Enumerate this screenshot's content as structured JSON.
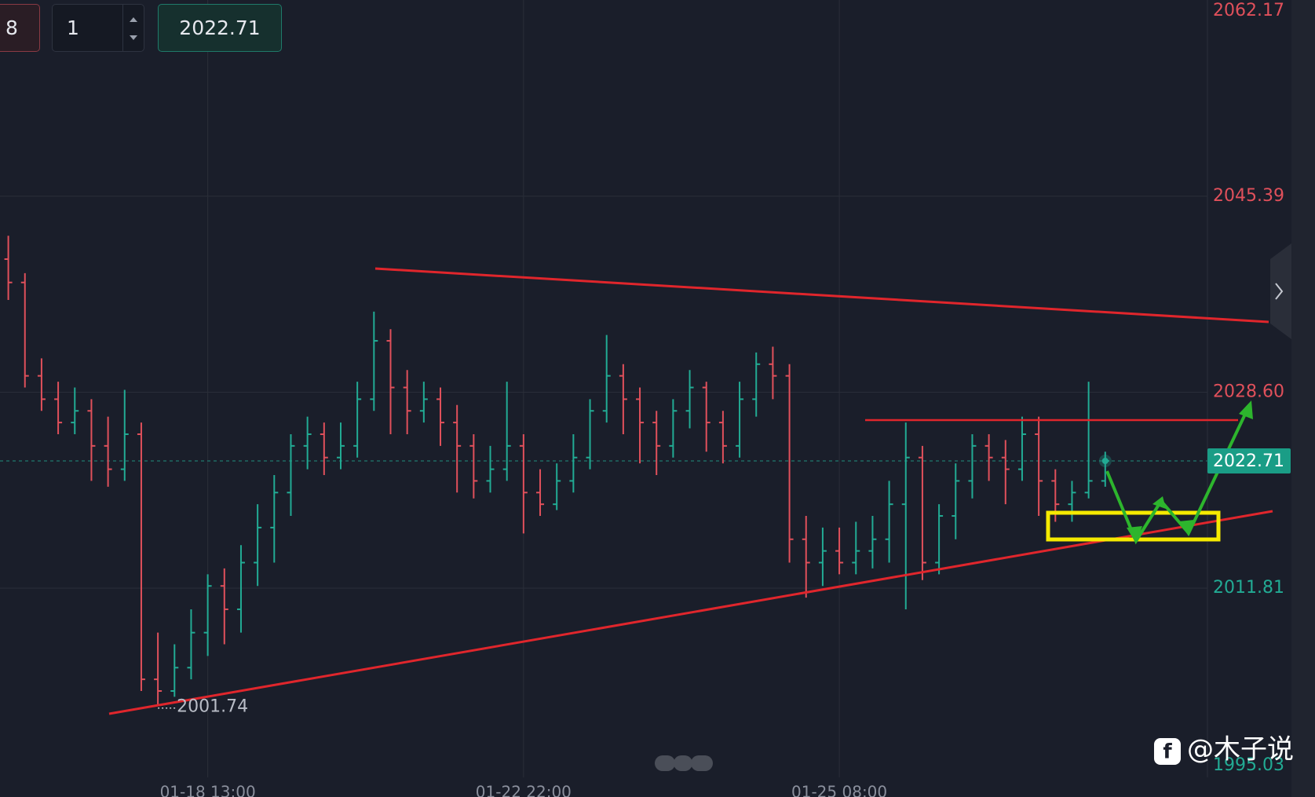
{
  "toolbar": {
    "field_a": "8",
    "quantity": "1",
    "price": "2022.71"
  },
  "watermark": "@木子说",
  "chart_data": {
    "type": "ohlc",
    "categories": [
      null,
      null,
      null,
      null,
      null,
      null,
      null,
      null,
      null,
      null,
      null,
      null,
      "01-18 13:00",
      null,
      null,
      null,
      null,
      null,
      null,
      null,
      null,
      null,
      null,
      null,
      null,
      null,
      null,
      null,
      null,
      null,
      null,
      "01-22 22:00",
      null,
      null,
      null,
      null,
      null,
      null,
      null,
      null,
      null,
      null,
      null,
      null,
      null,
      null,
      null,
      null,
      null,
      null,
      "01-25 08:00",
      null,
      null,
      null,
      null,
      null,
      null,
      null,
      null,
      null,
      null,
      null,
      null,
      null,
      null,
      null,
      null
    ],
    "open": [
      2040,
      2038,
      2030,
      2028,
      2026,
      2027,
      2024,
      2022,
      2025,
      2004,
      2003,
      2005,
      2008,
      2012,
      2010,
      2014,
      2017,
      2020,
      2024,
      2025,
      2023,
      2024,
      2028,
      2033,
      2029,
      2027,
      2028,
      2026,
      2024,
      2021,
      2022,
      2024,
      2020,
      2019,
      2021,
      2023,
      2027,
      2030,
      2028,
      2026,
      2024,
      2027,
      2029,
      2026,
      2024,
      2028,
      2031,
      2030,
      2016,
      2014,
      2015,
      2014,
      2015,
      2016,
      2019,
      2023,
      2014,
      2018,
      2021,
      2024,
      2023,
      2022,
      2025,
      2021,
      2019,
      2020,
      2021
    ],
    "high": [
      2042,
      2038.8,
      2031.5,
      2029.5,
      2029,
      2028,
      2026.5,
      2028.8,
      2026,
      2008,
      2007,
      2010,
      2013,
      2013.5,
      2015.5,
      2019,
      2021.5,
      2025,
      2026.5,
      2026,
      2026,
      2029.5,
      2035.5,
      2034,
      2030.5,
      2029.5,
      2029,
      2027.5,
      2025,
      2024,
      2029.5,
      2025,
      2022,
      2022.5,
      2025,
      2028,
      2033.5,
      2031,
      2029,
      2027,
      2028,
      2030.5,
      2029.5,
      2027,
      2029.5,
      2032,
      2032.5,
      2031,
      2018,
      2017,
      2017,
      2017.5,
      2018,
      2021,
      2026,
      2024,
      2019,
      2022.5,
      2025,
      2025,
      2024.5,
      2026.5,
      2026.5,
      2022,
      2021,
      2029.5,
      2023.5
    ],
    "low": [
      2036.5,
      2029,
      2027,
      2025,
      2025,
      2021,
      2020.5,
      2021,
      2003,
      2001.74,
      2002.5,
      2004,
      2006,
      2007,
      2008,
      2012,
      2014,
      2018,
      2022,
      2021.5,
      2022,
      2023,
      2027,
      2025,
      2025,
      2026,
      2024,
      2020,
      2019.5,
      2020,
      2021,
      2016.5,
      2018,
      2018.5,
      2020,
      2022,
      2026,
      2025,
      2022.5,
      2021.5,
      2023,
      2025.5,
      2023.5,
      2022.5,
      2023,
      2026.5,
      2028,
      2014,
      2011,
      2012,
      2013,
      2013,
      2013.5,
      2014,
      2010,
      2012.5,
      2013,
      2016,
      2019.5,
      2021,
      2019,
      2021,
      2018,
      2017.5,
      2017.5,
      2019.5,
      2020.5
    ],
    "close": [
      2038,
      2030,
      2028,
      2026,
      2027,
      2024,
      2022,
      2025,
      2004,
      2003,
      2005,
      2008,
      2012,
      2010,
      2014,
      2017,
      2020,
      2024,
      2025,
      2023,
      2024,
      2028,
      2033,
      2029,
      2027,
      2028,
      2026,
      2024,
      2021,
      2022,
      2024,
      2020,
      2019,
      2021,
      2023,
      2027,
      2030,
      2028,
      2026,
      2024,
      2027,
      2029,
      2026,
      2024,
      2028,
      2031,
      2030,
      2016,
      2014,
      2015,
      2014,
      2015,
      2016,
      2019,
      2023,
      2014,
      2018,
      2021,
      2024,
      2023,
      2022,
      2025,
      2021,
      2019,
      2020,
      2021,
      2022.71
    ],
    "up_color": "#22ab94",
    "down_color": "#e0505b",
    "ylim": [
      1995.6,
      2062.2
    ],
    "yticks": [
      2062.17,
      2045.39,
      {
        "value": 2028.6,
        "label": "2028.60"
      },
      2011.81,
      1995.03
    ],
    "grid": true
  }
}
